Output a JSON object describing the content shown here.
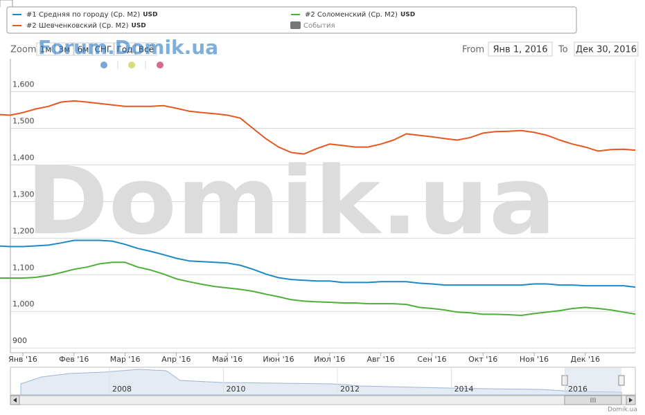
{
  "chart_data": {
    "type": "line",
    "legend_unit": "USD",
    "events_label": "События",
    "zoom": {
      "label": "Zoom",
      "buttons": [
        "1м",
        "3м",
        "6м",
        "СНГ",
        "Год",
        "Всё"
      ]
    },
    "range": {
      "from_label": "From",
      "from": "Янв 1, 2016",
      "to_label": "To",
      "to": "Дек 30, 2016"
    },
    "watermark": "Domik.ua",
    "forum_watermark": "Forum.Domik.ua",
    "credit": "Domik.ua",
    "navigator_xticks": [
      "2008",
      "2010",
      "2012",
      "2014",
      "2016"
    ],
    "categories": [
      null,
      null,
      "Янв '16",
      null,
      null,
      null,
      "Фев '16",
      null,
      null,
      null,
      "Мар '16",
      null,
      null,
      null,
      "Апр '16",
      null,
      null,
      null,
      "Май '16",
      null,
      null,
      null,
      "Июн '16",
      null,
      null,
      null,
      "Июл '16",
      null,
      null,
      null,
      "Авг '16",
      null,
      null,
      null,
      "Сен '16",
      null,
      null,
      null,
      "Окт '16",
      null,
      null,
      null,
      "Ноя '16",
      null,
      null,
      null,
      "Дек '16",
      null,
      null,
      null,
      null
    ],
    "series": [
      {
        "name": "#1 Средняя по городу (Ср. М2)",
        "color": "#1a8ac6",
        "values": [
          1179,
          1177,
          1177,
          1179,
          1181,
          1187,
          1194,
          1194,
          1194,
          1192,
          1183,
          1172,
          1164,
          1155,
          1145,
          1138,
          1136,
          1134,
          1132,
          1126,
          1115,
          1102,
          1092,
          1087,
          1085,
          1083,
          1083,
          1079,
          1079,
          1079,
          1081,
          1081,
          1081,
          1077,
          1075,
          1072,
          1072,
          1072,
          1072,
          1072,
          1072,
          1072,
          1075,
          1075,
          1072,
          1072,
          1070,
          1070,
          1070,
          1070,
          1066
        ]
      },
      {
        "name": "#2 Шевченковский (Ср. М2)",
        "color": "#e8561e",
        "values": [
          1538,
          1536,
          1543,
          1553,
          1560,
          1572,
          1575,
          1572,
          1568,
          1564,
          1560,
          1560,
          1560,
          1562,
          1555,
          1547,
          1543,
          1540,
          1536,
          1528,
          1500,
          1472,
          1449,
          1434,
          1430,
          1445,
          1457,
          1453,
          1449,
          1449,
          1457,
          1468,
          1485,
          1481,
          1477,
          1472,
          1468,
          1475,
          1487,
          1491,
          1492,
          1494,
          1489,
          1481,
          1468,
          1457,
          1449,
          1438,
          1442,
          1443,
          1440
        ]
      },
      {
        "name": "#2 Соломенский (Ср. М2)",
        "color": "#4daf3a",
        "values": [
          1091,
          1091,
          1091,
          1093,
          1098,
          1106,
          1115,
          1121,
          1130,
          1134,
          1134,
          1121,
          1113,
          1102,
          1089,
          1081,
          1074,
          1068,
          1064,
          1060,
          1055,
          1047,
          1040,
          1032,
          1028,
          1026,
          1025,
          1023,
          1023,
          1021,
          1021,
          1021,
          1019,
          1011,
          1008,
          1004,
          998,
          996,
          992,
          992,
          991,
          989,
          994,
          998,
          1002,
          1008,
          1011,
          1008,
          1004,
          998,
          992
        ]
      }
    ],
    "ylim": [
      887,
      1690
    ],
    "yticks": [
      900,
      {
        "value": 1000,
        "label": "1,000"
      },
      {
        "value": 1100,
        "label": "1,100"
      },
      {
        "value": 1200,
        "label": "1,200"
      },
      {
        "value": 1300,
        "label": "1,300"
      },
      {
        "value": 1400,
        "label": "1,400"
      },
      {
        "value": 1500,
        "label": "1,500"
      },
      {
        "value": 1600,
        "label": "1,600"
      }
    ],
    "grid": true
  }
}
